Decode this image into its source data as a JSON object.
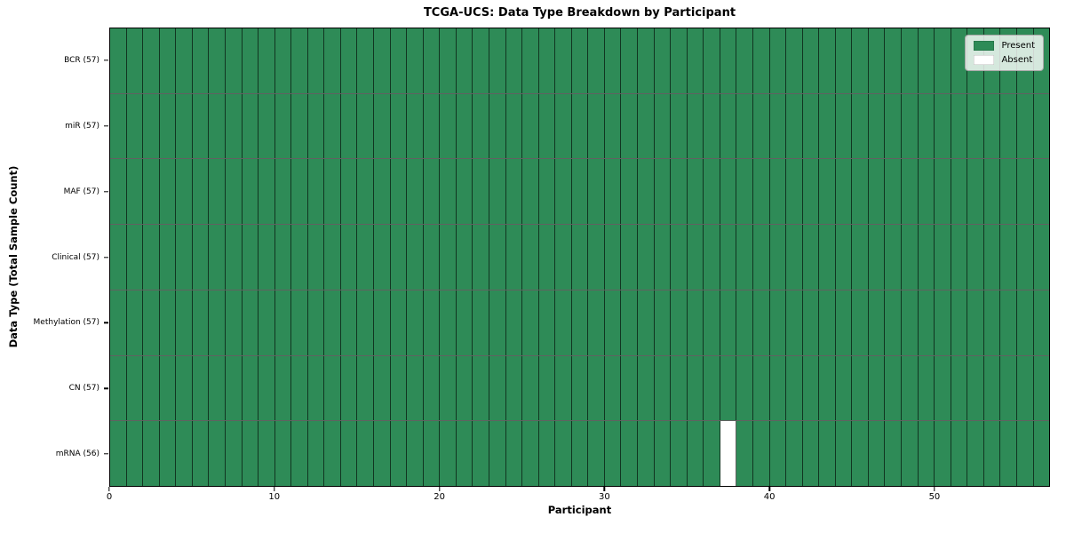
{
  "chart_data": {
    "type": "heatmap",
    "title": "TCGA-UCS: Data Type Breakdown by Participant",
    "xlabel": "Participant",
    "ylabel": "Data Type (Total Sample Count)",
    "n_participants": 57,
    "x_ticks": [
      0,
      10,
      20,
      30,
      40,
      50
    ],
    "x_range": [
      0,
      57
    ],
    "grid": "cell-edges",
    "rows": [
      {
        "label": "BCR (57)",
        "data_type": "BCR",
        "total": 57,
        "absent_participants": []
      },
      {
        "label": "miR (57)",
        "data_type": "miR",
        "total": 57,
        "absent_participants": []
      },
      {
        "label": "MAF (57)",
        "data_type": "MAF",
        "total": 57,
        "absent_participants": []
      },
      {
        "label": "Clinical (57)",
        "data_type": "Clinical",
        "total": 57,
        "absent_participants": []
      },
      {
        "label": "Methylation (57)",
        "data_type": "Methylation",
        "total": 57,
        "absent_participants": []
      },
      {
        "label": "CN (57)",
        "data_type": "CN",
        "total": 57,
        "absent_participants": []
      },
      {
        "label": "mRNA (56)",
        "data_type": "mRNA",
        "total": 56,
        "absent_participants": [
          37
        ]
      }
    ],
    "legend": {
      "position": "upper-right",
      "items": [
        {
          "label": "Present",
          "color": "#2E8B57"
        },
        {
          "label": "Absent",
          "color": "#FFFFFF"
        }
      ]
    },
    "colors": {
      "present": "#2E8B57",
      "absent": "#FFFFFF",
      "spine": "#000000"
    }
  }
}
